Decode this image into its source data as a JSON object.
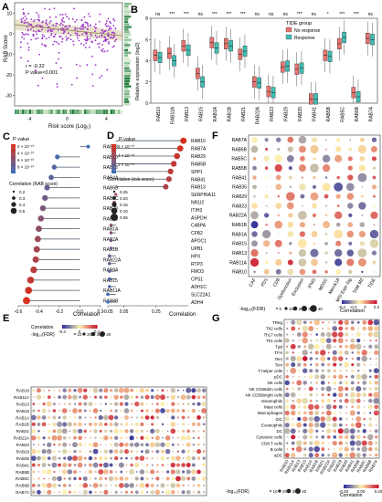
{
  "panels": {
    "A": "A",
    "B": "B",
    "C": "C",
    "D": "D",
    "E": "E",
    "F": "F",
    "G": "G"
  },
  "chart_data": [
    {
      "id": "A",
      "type": "scatter",
      "xlabel": "Risk score (Log₂)",
      "ylabel": "RAB Score",
      "xlim": [
        -4,
        5
      ],
      "ylim": [
        -35,
        15
      ],
      "xticks": [
        "-4",
        "0",
        "4"
      ],
      "yticks": [
        "10",
        "0",
        "-10",
        "-20",
        "-30"
      ],
      "annotation": [
        "r = -0.32",
        "P value<0.001"
      ],
      "point_color": "#9b30c9",
      "fit_color": "#d6c9a0",
      "fit": {
        "slope": -0.6,
        "intercept": 2
      }
    },
    {
      "id": "B",
      "type": "box",
      "title": "TIDE group",
      "ylabel": "Relative expression (log2)",
      "ylim": [
        0,
        8
      ],
      "yticks": [
        "8",
        "6",
        "4",
        "2",
        "0"
      ],
      "legend": [
        {
          "name": "No response",
          "color": "#e8746f"
        },
        {
          "name": "Response",
          "color": "#3fbfb3"
        }
      ],
      "categories": [
        "RAB10",
        "RAB11A",
        "RAB13",
        "RAB15",
        "RAB1A",
        "RAB1B",
        "RAB21",
        "RAB22A",
        "RAB23",
        "RAB29",
        "RAB35",
        "RAB41",
        "RAB5B",
        "RAB5C",
        "RAB6B",
        "RAB7A"
      ],
      "signif": [
        "ns",
        "***",
        "***",
        "ns",
        "***",
        "***",
        "***",
        "ns",
        "ns",
        "ns",
        "***",
        "ns",
        "*",
        "***",
        "***",
        "ns"
      ],
      "medians": [
        [
          4.5,
          4.3
        ],
        [
          4.7,
          4.0
        ],
        [
          5.4,
          5.0
        ],
        [
          2.8,
          2.0
        ],
        [
          5.7,
          5.2
        ],
        [
          5.6,
          5.4
        ],
        [
          4.6,
          4.9
        ],
        [
          2.0,
          1.9
        ],
        [
          1.1,
          1.0
        ],
        [
          3.4,
          3.5
        ],
        [
          3.2,
          3.3
        ],
        [
          0.4,
          0.4
        ],
        [
          4.5,
          4.4
        ],
        [
          5.6,
          6.2
        ],
        [
          1.0,
          0.6
        ],
        [
          6.1,
          6.0
        ]
      ]
    },
    {
      "id": "C",
      "type": "lollipop",
      "xlabel": "Correlation",
      "xlim": [
        -0.6,
        0.2
      ],
      "xticks": [
        "-0.6",
        "-0.4",
        "-0.2",
        "0.0",
        "0.2"
      ],
      "legend_p_title": "P value",
      "p_ticks": [
        "2 × 10⁻¹⁰",
        "4 × 10⁻¹⁰",
        "6 × 10⁻¹⁰",
        "8 × 10⁻¹⁰"
      ],
      "legend_size_title": "Correlation (RAB score)",
      "size_ticks": [
        "0.2",
        "0.3",
        "0.4",
        "0.5"
      ],
      "categories": [
        "RAB28",
        "RAB10",
        "RAB13",
        "RAB4A",
        "RAB6B",
        "RAB5C",
        "RAB29",
        "RAB23",
        "RAB1A",
        "RAB7A",
        "RAB1B",
        "RAB22A",
        "RAB9A",
        "RAB15",
        "RAB11A",
        "RAB8B"
      ],
      "values": [
        0.08,
        -0.22,
        -0.25,
        -0.28,
        -0.32,
        -0.34,
        -0.36,
        -0.38,
        -0.4,
        -0.41,
        -0.42,
        -0.43,
        -0.45,
        -0.48,
        -0.5,
        -0.52
      ]
    },
    {
      "id": "D",
      "type": "lollipop",
      "xlabel": "Correlation",
      "xlim": [
        -0.05,
        0.45
      ],
      "xticks": [
        "-0.05",
        "0.05",
        "0.25"
      ],
      "legend_p_title": "P value",
      "p_ticks": [
        "6 × 10⁻¹⁰",
        "4 × 10⁻¹⁰",
        "2 × 10⁻¹⁰"
      ],
      "legend_size_title": "Correlation (risk score)",
      "size_ticks": [
        "0.25",
        "0.20",
        "0.15",
        "0.10",
        "0.05"
      ],
      "categories": [
        "RAB10",
        "RAB7A",
        "RAB29",
        "RAB5B",
        "SPP1",
        "RAB41",
        "RAB13",
        "SERPINA11",
        "NR1I2",
        "ITIH3",
        "ASPDH",
        "C4BPA",
        "CFB2",
        "APOC1",
        "UPB1",
        "HPX",
        "RTP3",
        "FMO3",
        "CPS1",
        "ADH1C",
        "SLC22A1",
        "ADH4"
      ],
      "values": [
        0.42,
        0.4,
        0.38,
        0.36,
        0.34,
        0.33,
        0.31,
        0.0,
        -0.01,
        -0.02,
        -0.02,
        -0.03,
        -0.03,
        -0.03,
        -0.03,
        -0.04,
        -0.04,
        -0.04,
        -0.04,
        -0.04,
        -0.05,
        -0.05
      ]
    },
    {
      "id": "F",
      "type": "heatmap",
      "rows": [
        "RAB7A",
        "RAB6B",
        "RAB5C",
        "RAB5B",
        "RAB41",
        "RAB35",
        "RAB29",
        "RAB23",
        "RAB22A",
        "RAB1B",
        "RAB1A",
        "RAB15",
        "RAB13",
        "RAB11A",
        "RAB10"
      ],
      "cols": [
        "CAF",
        "PD1",
        "CD8",
        "Dysfunction",
        "Exclusion",
        "IFNG",
        "MDSC",
        "Merck18",
        "MSI Expr Sig",
        "TAM M2",
        "TIDE"
      ],
      "legend_size_title": "-log₁₀(FDR)",
      "size_ticks": [
        "0",
        "10",
        "20",
        "30",
        "40"
      ],
      "legend_color_title": "Correlation",
      "color_ticks": [
        "-0.4",
        "-0.2",
        "0",
        "0.2"
      ]
    },
    {
      "id": "E",
      "type": "heatmap",
      "rows": [
        "RAB10",
        "RAB11A",
        "RAB13",
        "RAB15",
        "RAB1A",
        "RAB1B",
        "RAB21",
        "RAB22A",
        "RAB23",
        "RAB29",
        "RAB35",
        "RAB41",
        "RAB5B",
        "RAB5C",
        "RAB6B",
        "RAB7A"
      ],
      "legend_size_title": "-log₁₀(FDR)",
      "size_ticks": [
        "10",
        "20",
        "30",
        "40"
      ],
      "legend_color_title": "Correlation",
      "color_ticks": [
        "-0.4",
        "0",
        "0.4"
      ]
    },
    {
      "id": "G",
      "type": "heatmap",
      "rows": [
        "TReg",
        "Th2 cells",
        "Th17 cells",
        "Th1 cells",
        "Tgd",
        "TFH",
        "Tem",
        "Tcm",
        "T helper cells",
        "pDC",
        "NK cells",
        "NK CD56dim cells",
        "NK CD56bright cells",
        "Neutrophils",
        "Mast cells",
        "Macrophages",
        "iDC",
        "Eosinophils",
        "DC",
        "Cytotoxic cells",
        "CD8 T cells",
        "B cells",
        "aDC"
      ],
      "cols": [
        "RAB10",
        "RAB11A",
        "RAB13",
        "RAB15",
        "RAB1A",
        "RAB1B",
        "RAB21",
        "RAB22A",
        "RAB23",
        "RAB29",
        "RAB35",
        "RAB41",
        "RAB5B",
        "RAB5C",
        "RAB6B",
        "RAB7A"
      ],
      "legend_size_title": "-log₁₀(FDR)",
      "size_ticks": [
        "10",
        "20",
        "30",
        "40"
      ],
      "legend_color_title": "Correlation",
      "color_ticks": [
        "-0.20",
        "0.00",
        "0.20"
      ]
    }
  ]
}
